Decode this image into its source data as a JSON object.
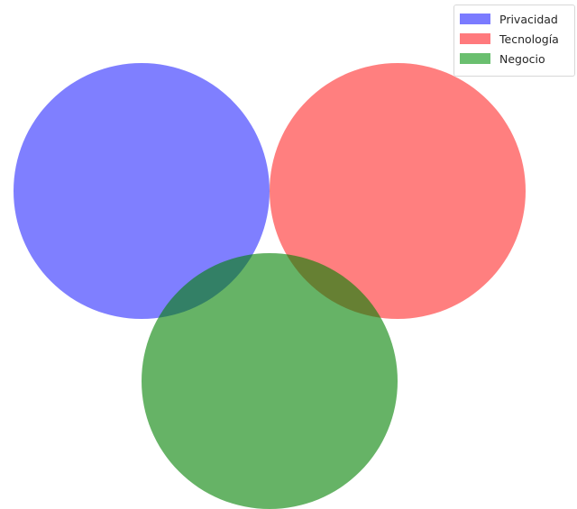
{
  "diagram": {
    "type": "venn",
    "sets": [
      {
        "name": "Privacidad",
        "color": "#0000ff",
        "opacity": 0.5
      },
      {
        "name": "Tecnología",
        "color": "#ff0000",
        "opacity": 0.5
      },
      {
        "name": "Negocio",
        "color": "#008000",
        "opacity": 0.6
      }
    ],
    "legend": {
      "position": "top-right",
      "entries": [
        {
          "label": "Privacidad",
          "color": "#7b7bff"
        },
        {
          "label": "Tecnología",
          "color": "#ff7a7d"
        },
        {
          "label": "Negocio",
          "color": "#6abf6f"
        }
      ]
    }
  }
}
